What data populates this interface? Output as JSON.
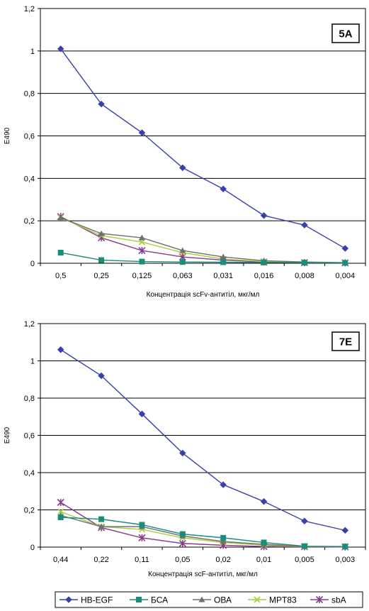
{
  "chart_data": [
    {
      "type": "line",
      "tag": "5A",
      "xlabel": "Концентрація scFv-антитіл, мкг/мл",
      "ylabel": "E490",
      "ylim": [
        0,
        1.2
      ],
      "yticks": [
        "0",
        "0,2",
        "0,4",
        "0,6",
        "0,8",
        "1",
        "1,2"
      ],
      "grid": true,
      "categories": [
        "0,5",
        "0,25",
        "0,125",
        "0,063",
        "0,031",
        "0,016",
        "0,008",
        "0,004"
      ],
      "series": [
        {
          "name": "HB-EGF",
          "values": [
            1.01,
            0.75,
            0.615,
            0.45,
            0.35,
            0.225,
            0.18,
            0.07
          ]
        },
        {
          "name": "БСА",
          "values": [
            0.05,
            0.015,
            0.008,
            0.006,
            0.005,
            0.004,
            0.003,
            0.002
          ]
        },
        {
          "name": "ОВА",
          "values": [
            0.215,
            0.14,
            0.12,
            0.06,
            0.03,
            0.012,
            0.006,
            0.003
          ]
        },
        {
          "name": "MPT83",
          "values": [
            0.215,
            0.13,
            0.1,
            0.05,
            0.02,
            0.008,
            0.004,
            0.002
          ]
        },
        {
          "name": "sbA",
          "values": [
            0.22,
            0.12,
            0.06,
            0.03,
            0.015,
            0.006,
            0.003,
            0.002
          ]
        }
      ]
    },
    {
      "type": "line",
      "tag": "7E",
      "xlabel": "Концентрація scF-антитіл, мкг/мл",
      "ylabel": "E490",
      "ylim": [
        0,
        1.2
      ],
      "yticks": [
        "0",
        "0,2",
        "0,4",
        "0,6",
        "0,8",
        "1",
        "1,2"
      ],
      "grid": true,
      "categories": [
        "0,44",
        "0,22",
        "0,11",
        "0,05",
        "0,02",
        "0,01",
        "0,005",
        "0,003"
      ],
      "series": [
        {
          "name": "HB-EGF",
          "values": [
            1.06,
            0.92,
            0.715,
            0.505,
            0.335,
            0.245,
            0.14,
            0.09
          ]
        },
        {
          "name": "БСА",
          "values": [
            0.16,
            0.15,
            0.12,
            0.07,
            0.05,
            0.025,
            0.005,
            0.003
          ]
        },
        {
          "name": "ОВА",
          "values": [
            0.17,
            0.11,
            0.11,
            0.06,
            0.03,
            0.015,
            0.004,
            0.002
          ]
        },
        {
          "name": "MPT83",
          "values": [
            0.19,
            0.11,
            0.095,
            0.05,
            0.025,
            0.01,
            0.003,
            0.002
          ]
        },
        {
          "name": "sbA",
          "values": [
            0.24,
            0.105,
            0.05,
            0.02,
            0.01,
            0.003,
            0.002,
            0.001
          ]
        }
      ]
    }
  ],
  "legend": {
    "entries": [
      {
        "name": "HB-EGF",
        "color": "#3B3FA8",
        "marker": "diamond"
      },
      {
        "name": "БСА",
        "color": "#1A8C7C",
        "marker": "square"
      },
      {
        "name": "ОВА",
        "color": "#707070",
        "marker": "triangle"
      },
      {
        "name": "MPT83",
        "color": "#A8CC3A",
        "marker": "x"
      },
      {
        "name": "sbA",
        "color": "#8A3A8E",
        "marker": "star"
      }
    ]
  }
}
